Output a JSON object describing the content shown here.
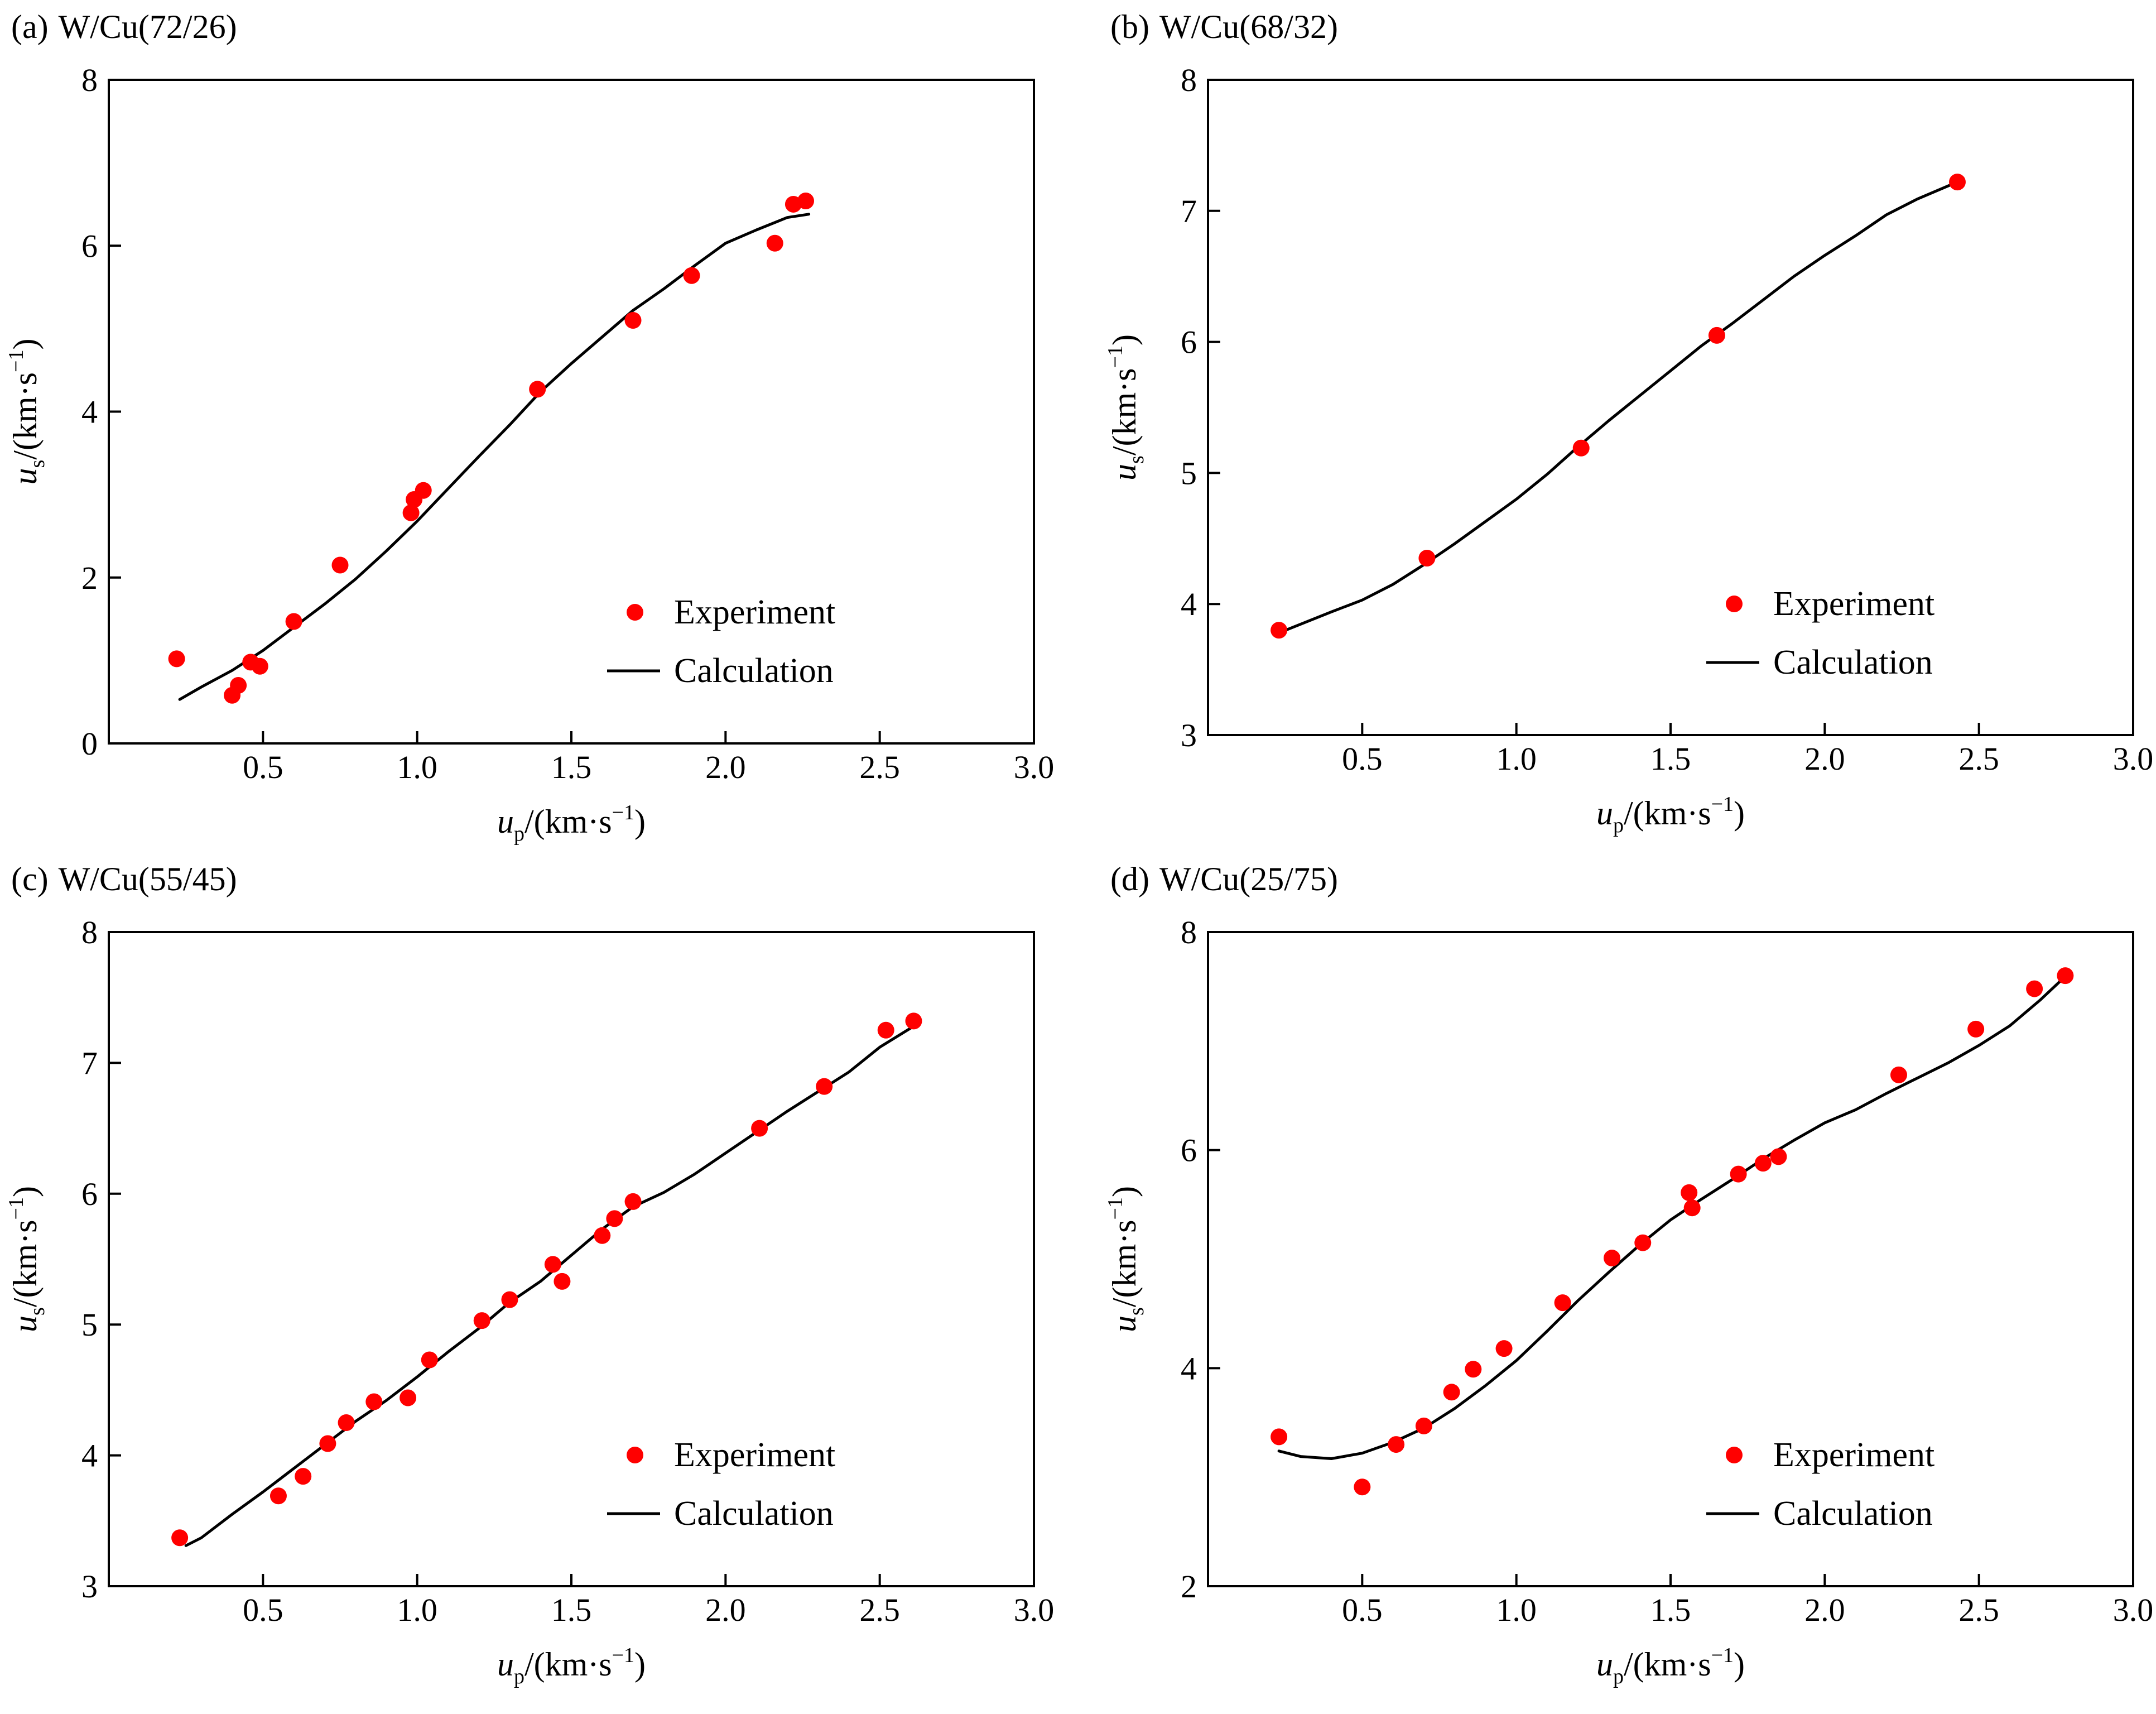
{
  "figure": {
    "colors": {
      "experiment": "#ff0000",
      "calculation": "#000000"
    },
    "panels": [
      {
        "id": "a",
        "tag": "(a)",
        "title": "W/Cu(72/26)"
      },
      {
        "id": "b",
        "tag": "(b)",
        "title": "W/Cu(68/32)"
      },
      {
        "id": "c",
        "tag": "(c)",
        "title": "W/Cu(55/45)"
      },
      {
        "id": "d",
        "tag": "(d)",
        "title": "W/Cu(25/75)"
      }
    ]
  },
  "chart_data": [
    {
      "type": "scatter",
      "title": "(a) W/Cu(72/26)",
      "xlabel": {
        "var": "u",
        "sub": "p",
        "unit": "/(km·s",
        "sup": "−1",
        "close": ")"
      },
      "ylabel": {
        "var": "u",
        "sub": "s",
        "unit": "/(km·s",
        "sup": "−1",
        "close": ")"
      },
      "xlim": [
        0,
        3.0
      ],
      "ylim": [
        0,
        8
      ],
      "xticks": [
        "0.5",
        "1.0",
        "1.5",
        "2.0",
        "2.5",
        "3.0"
      ],
      "yticks": [
        "0",
        "2",
        "4",
        "6",
        "8"
      ],
      "legend": {
        "position": "bottom-right",
        "entries": [
          "Experiment",
          "Calculation"
        ]
      },
      "series": [
        {
          "name": "Experiment",
          "kind": "points",
          "x": [
            0.22,
            0.4,
            0.42,
            0.46,
            0.49,
            0.6,
            0.75,
            0.98,
            0.99,
            1.02,
            1.39,
            1.7,
            1.89,
            2.16,
            2.22,
            2.26
          ],
          "y": [
            1.02,
            0.58,
            0.7,
            0.98,
            0.93,
            1.47,
            2.15,
            2.78,
            2.94,
            3.05,
            4.27,
            5.1,
            5.64,
            6.03,
            6.5,
            6.54
          ]
        },
        {
          "name": "Calculation",
          "kind": "line",
          "x": [
            0.23,
            0.3,
            0.4,
            0.5,
            0.6,
            0.7,
            0.8,
            0.9,
            1.0,
            1.1,
            1.2,
            1.3,
            1.4,
            1.5,
            1.6,
            1.7,
            1.8,
            1.9,
            2.0,
            2.1,
            2.2,
            2.27
          ],
          "y": [
            0.53,
            0.68,
            0.88,
            1.12,
            1.4,
            1.68,
            1.98,
            2.32,
            2.68,
            3.07,
            3.46,
            3.84,
            4.24,
            4.58,
            4.9,
            5.22,
            5.48,
            5.76,
            6.03,
            6.19,
            6.34,
            6.38
          ]
        }
      ]
    },
    {
      "type": "scatter",
      "title": "(b) W/Cu(68/32)",
      "xlabel": {
        "var": "u",
        "sub": "p",
        "unit": "/(km·s",
        "sup": "−1",
        "close": ")"
      },
      "ylabel": {
        "var": "u",
        "sub": "s",
        "unit": "/(km·s",
        "sup": "−1",
        "close": ")"
      },
      "xlim": [
        0,
        3.0
      ],
      "ylim": [
        3,
        8
      ],
      "xticks": [
        "0.5",
        "1.0",
        "1.5",
        "2.0",
        "2.5",
        "3.0"
      ],
      "yticks": [
        "3",
        "4",
        "5",
        "6",
        "7",
        "8"
      ],
      "legend": {
        "position": "bottom-right",
        "entries": [
          "Experiment",
          "Calculation"
        ]
      },
      "series": [
        {
          "name": "Experiment",
          "kind": "points",
          "x": [
            0.23,
            0.71,
            1.21,
            1.65,
            2.43
          ],
          "y": [
            3.8,
            4.35,
            5.19,
            6.05,
            7.22
          ]
        },
        {
          "name": "Calculation",
          "kind": "line",
          "x": [
            0.23,
            0.4,
            0.5,
            0.6,
            0.7,
            0.8,
            0.9,
            1.0,
            1.1,
            1.2,
            1.3,
            1.4,
            1.5,
            1.6,
            1.7,
            1.8,
            1.9,
            2.0,
            2.1,
            2.2,
            2.3,
            2.43
          ],
          "y": [
            3.78,
            3.94,
            4.03,
            4.15,
            4.3,
            4.46,
            4.63,
            4.8,
            4.99,
            5.2,
            5.4,
            5.59,
            5.78,
            5.97,
            6.14,
            6.32,
            6.5,
            6.66,
            6.81,
            6.97,
            7.09,
            7.22
          ]
        }
      ]
    },
    {
      "type": "scatter",
      "title": "(c) W/Cu(55/45)",
      "xlabel": {
        "var": "u",
        "sub": "p",
        "unit": "/(km·s",
        "sup": "−1",
        "close": ")"
      },
      "ylabel": {
        "var": "u",
        "sub": "s",
        "unit": "/(km·s",
        "sup": "−1",
        "close": ")"
      },
      "xlim": [
        0,
        3.0
      ],
      "ylim": [
        3,
        8
      ],
      "xticks": [
        "0.5",
        "1.0",
        "1.5",
        "2.0",
        "2.5",
        "3.0"
      ],
      "yticks": [
        "3",
        "4",
        "5",
        "6",
        "7",
        "8"
      ],
      "legend": {
        "position": "bottom-right",
        "entries": [
          "Experiment",
          "Calculation"
        ]
      },
      "series": [
        {
          "name": "Experiment",
          "kind": "points",
          "x": [
            0.23,
            0.55,
            0.63,
            0.71,
            0.77,
            0.86,
            0.97,
            1.04,
            1.21,
            1.3,
            1.44,
            1.47,
            1.6,
            1.64,
            1.7,
            2.11,
            2.32,
            2.52,
            2.61
          ],
          "y": [
            3.37,
            3.69,
            3.84,
            4.09,
            4.25,
            4.41,
            4.44,
            4.73,
            5.03,
            5.19,
            5.46,
            5.33,
            5.68,
            5.81,
            5.94,
            6.5,
            6.82,
            7.25,
            7.32
          ]
        },
        {
          "name": "Calculation",
          "kind": "line",
          "x": [
            0.25,
            0.3,
            0.4,
            0.5,
            0.6,
            0.7,
            0.8,
            0.9,
            1.0,
            1.1,
            1.2,
            1.3,
            1.4,
            1.5,
            1.6,
            1.7,
            1.8,
            1.9,
            2.0,
            2.1,
            2.2,
            2.3,
            2.4,
            2.5,
            2.61
          ],
          "y": [
            3.31,
            3.37,
            3.55,
            3.72,
            3.9,
            4.08,
            4.26,
            4.42,
            4.6,
            4.79,
            4.97,
            5.17,
            5.33,
            5.53,
            5.73,
            5.9,
            6.01,
            6.15,
            6.31,
            6.47,
            6.63,
            6.78,
            6.93,
            7.12,
            7.28
          ]
        }
      ]
    },
    {
      "type": "scatter",
      "title": "(d) W/Cu(25/75)",
      "xlabel": {
        "var": "u",
        "sub": "p",
        "unit": "/(km·s",
        "sup": "−1",
        "close": ")"
      },
      "ylabel": {
        "var": "u",
        "sub": "s",
        "unit": "/(km·s",
        "sup": "−1",
        "close": ")"
      },
      "xlim": [
        0,
        3.0
      ],
      "ylim": [
        2,
        8
      ],
      "xticks": [
        "0.5",
        "1.0",
        "1.5",
        "2.0",
        "2.5",
        "3.0"
      ],
      "yticks": [
        "2",
        "4",
        "6",
        "8"
      ],
      "legend": {
        "position": "bottom-right",
        "entries": [
          "Experiment",
          "Calculation"
        ]
      },
      "series": [
        {
          "name": "Experiment",
          "kind": "points",
          "x": [
            0.23,
            0.5,
            0.61,
            0.7,
            0.79,
            0.86,
            0.96,
            1.15,
            1.31,
            1.41,
            1.56,
            1.57,
            1.72,
            1.8,
            1.85,
            2.24,
            2.49,
            2.68,
            2.78
          ],
          "y": [
            3.37,
            2.91,
            3.3,
            3.47,
            3.78,
            3.99,
            4.18,
            4.6,
            5.01,
            5.15,
            5.61,
            5.47,
            5.78,
            5.88,
            5.94,
            6.69,
            7.11,
            7.48,
            7.6
          ]
        },
        {
          "name": "Calculation",
          "kind": "line",
          "x": [
            0.23,
            0.3,
            0.4,
            0.5,
            0.6,
            0.7,
            0.8,
            0.9,
            1.0,
            1.1,
            1.2,
            1.3,
            1.4,
            1.5,
            1.6,
            1.7,
            1.8,
            1.9,
            2.0,
            2.1,
            2.2,
            2.3,
            2.4,
            2.5,
            2.6,
            2.7,
            2.79
          ],
          "y": [
            3.24,
            3.19,
            3.17,
            3.22,
            3.32,
            3.45,
            3.63,
            3.84,
            4.07,
            4.34,
            4.62,
            4.88,
            5.13,
            5.36,
            5.55,
            5.73,
            5.92,
            6.09,
            6.25,
            6.37,
            6.52,
            6.66,
            6.8,
            6.96,
            7.14,
            7.38,
            7.62
          ]
        }
      ]
    }
  ]
}
